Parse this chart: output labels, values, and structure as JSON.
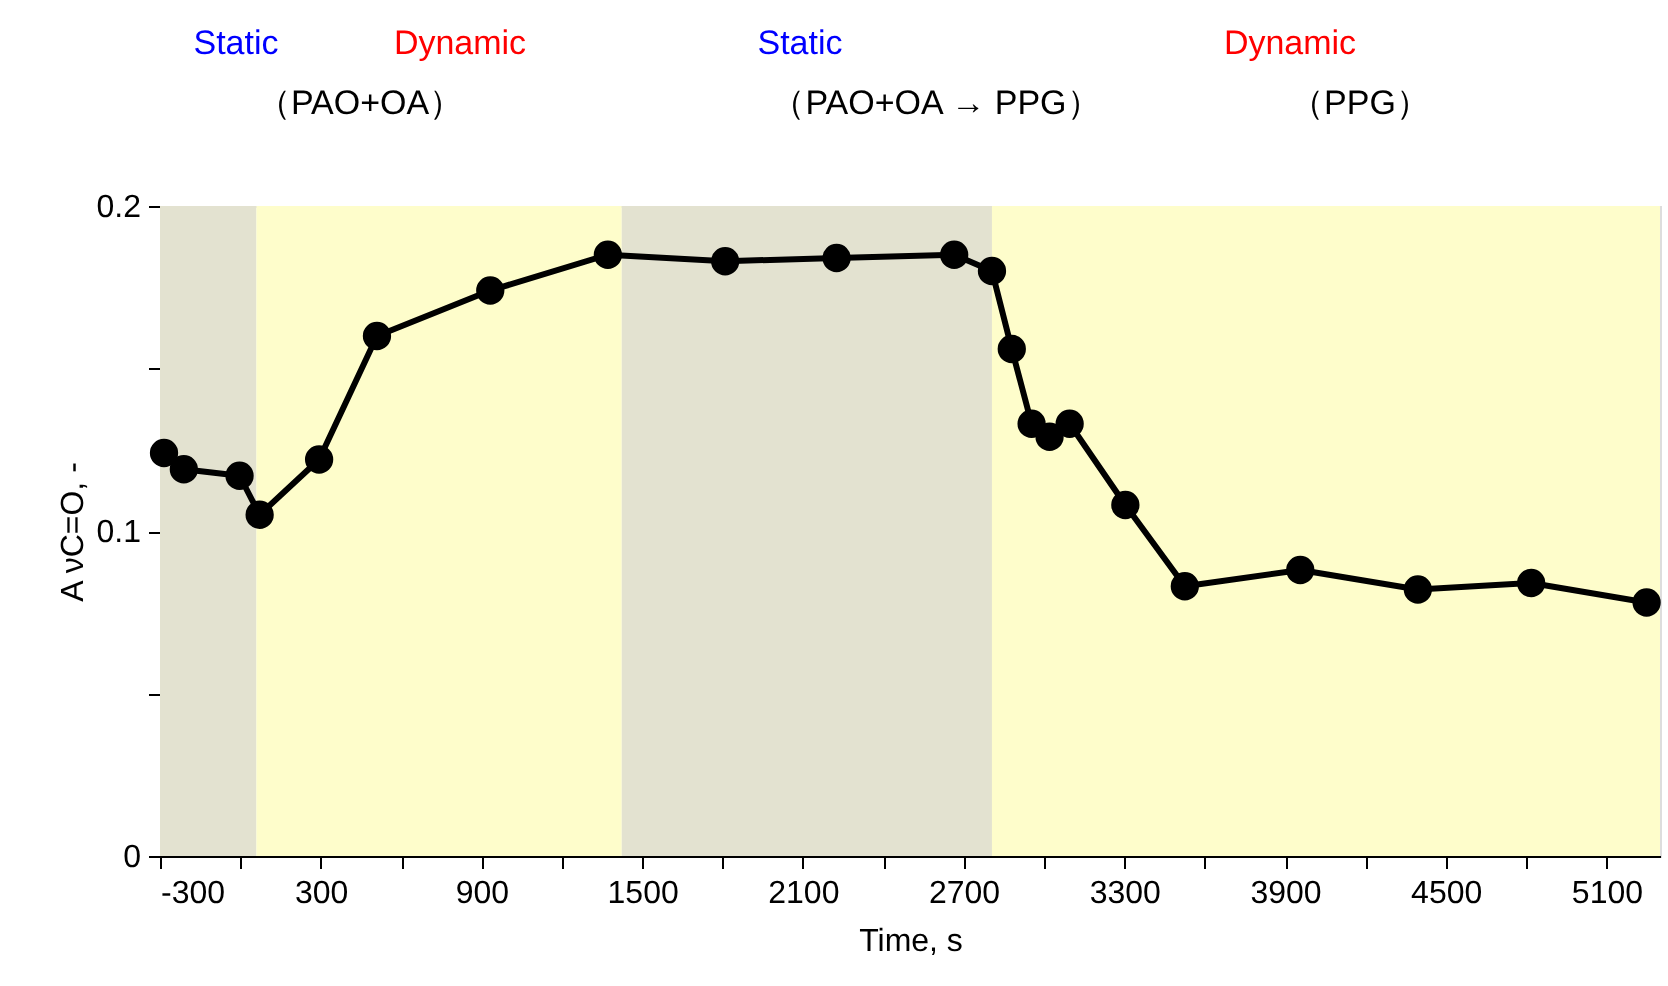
{
  "chart_data": {
    "type": "line",
    "xlabel": "Time, s",
    "ylabel": "A νC=O, -",
    "x": [
      -285,
      -211,
      -3,
      72,
      294,
      510,
      933,
      1372,
      1810,
      2226,
      2665,
      2806,
      2880,
      2954,
      3021,
      3096,
      3304,
      3526,
      3957,
      4396,
      4819,
      5250
    ],
    "series": [
      {
        "color": "#000000",
        "values": [
          0.124,
          0.119,
          0.117,
          0.105,
          0.122,
          0.16,
          0.174,
          0.185,
          0.183,
          0.184,
          0.185,
          0.18,
          0.156,
          0.133,
          0.129,
          0.133,
          0.108,
          0.083,
          0.088,
          0.082,
          0.084,
          0.078
        ]
      }
    ],
    "marker": "circle",
    "line_style": "solid",
    "xlim": [
      -300,
      5300
    ],
    "xticks": [
      -300,
      {
        "value": 0,
        "label": null
      },
      300,
      {
        "value": 600,
        "label": null
      },
      900,
      {
        "value": 1200,
        "label": null
      },
      1500,
      {
        "value": 1800,
        "label": null
      },
      2100,
      {
        "value": 2400,
        "label": null
      },
      2700,
      {
        "value": 3000,
        "label": null
      },
      3300,
      {
        "value": 3600,
        "label": null
      },
      3900,
      {
        "value": 4200,
        "label": null
      },
      4500,
      {
        "value": 4800,
        "label": null
      },
      5100
    ],
    "ylim": [
      0,
      0.2
    ],
    "yticks": [
      0,
      {
        "value": 0.05,
        "label": null
      },
      0.1,
      {
        "value": 0.15,
        "label": null
      },
      0.2
    ],
    "bands": [
      {
        "axis": "x",
        "from": -300,
        "to": 60,
        "color": "#e3e2d0"
      },
      {
        "axis": "x",
        "from": 60,
        "to": 1424,
        "color": "#fefdcb"
      },
      {
        "axis": "x",
        "from": 1424,
        "to": 2806,
        "color": "#e3e2d0"
      },
      {
        "axis": "x",
        "from": 2806,
        "to": 5300,
        "color": "#fefdcb"
      }
    ],
    "annotations": [
      "Static",
      "Dynamic",
      "（PAO+OA）",
      "Static",
      "（PAO+OA → PPG）",
      "Dynamic",
      "（PPG）"
    ]
  }
}
